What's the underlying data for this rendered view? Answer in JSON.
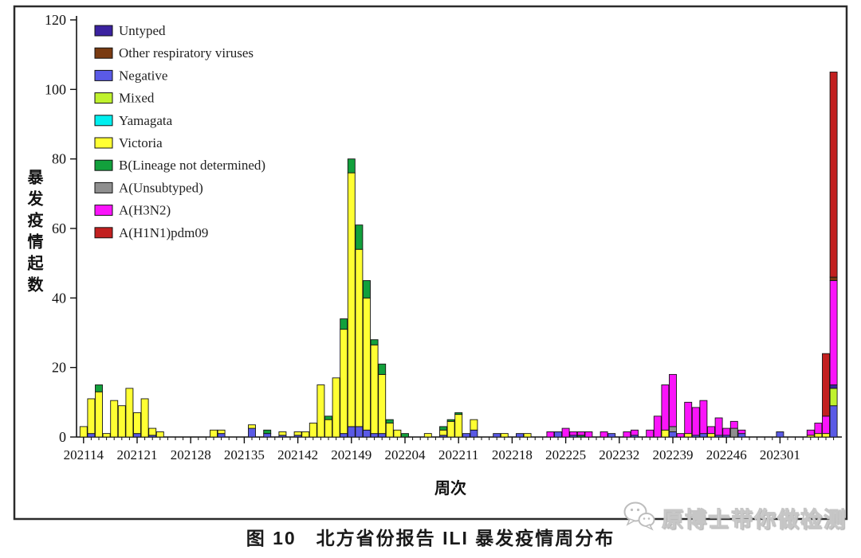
{
  "figure": {
    "caption": "图 10　北方省份报告 ILI 暴发疫情周分布",
    "watermark": "原博士带你做检测"
  },
  "chart_data": {
    "type": "bar",
    "stacked": true,
    "title": "",
    "xlabel": "周次",
    "ylabel": "暴发疫情起数",
    "ylim": [
      0,
      120
    ],
    "y_ticks": [
      0,
      20,
      40,
      60,
      80,
      100,
      120
    ],
    "x_ticks": [
      "202114",
      "202121",
      "202128",
      "202135",
      "202142",
      "202149",
      "202204",
      "202211",
      "202218",
      "202225",
      "202232",
      "202239",
      "202246",
      "202301"
    ],
    "legend_position": "top-left",
    "grid": false,
    "series": [
      {
        "key": "untyped",
        "label": "Untyped",
        "color": "#3B22A0"
      },
      {
        "key": "other",
        "label": "Other respiratory viruses",
        "color": "#7A3B12"
      },
      {
        "key": "negative",
        "label": "Negative",
        "color": "#5A5AE6"
      },
      {
        "key": "mixed",
        "label": "Mixed",
        "color": "#C0F22E"
      },
      {
        "key": "yamagata",
        "label": "Yamagata",
        "color": "#00EFEF"
      },
      {
        "key": "victoria",
        "label": "Victoria",
        "color": "#FFFF33"
      },
      {
        "key": "b_lineage",
        "label": "B(Lineage not determined)",
        "color": "#12A03C"
      },
      {
        "key": "unsubtyped",
        "label": "A(Unsubtyped)",
        "color": "#8F8F8F"
      },
      {
        "key": "h3n2",
        "label": "A(H3N2)",
        "color": "#FA14FA"
      },
      {
        "key": "h1n1pdm09",
        "label": "A(H1N1)pdm09",
        "color": "#C22020"
      }
    ],
    "stack_order": [
      "negative",
      "unsubtyped",
      "mixed",
      "untyped",
      "victoria",
      "b_lineage",
      "h3n2",
      "other",
      "h1n1pdm09"
    ],
    "bars": [
      {
        "week": "202114",
        "segments": {
          "victoria": 3
        }
      },
      {
        "week": "202115",
        "segments": {
          "negative": 1,
          "victoria": 10
        }
      },
      {
        "week": "202116",
        "segments": {
          "victoria": 13,
          "b_lineage": 2
        }
      },
      {
        "week": "202117",
        "segments": {
          "victoria": 1
        }
      },
      {
        "week": "202118",
        "segments": {
          "victoria": 10.5
        }
      },
      {
        "week": "202119",
        "segments": {
          "victoria": 9
        }
      },
      {
        "week": "202120",
        "segments": {
          "victoria": 14
        }
      },
      {
        "week": "202121",
        "segments": {
          "negative": 1,
          "victoria": 6
        }
      },
      {
        "week": "202122",
        "segments": {
          "victoria": 11
        }
      },
      {
        "week": "202123",
        "segments": {
          "negative": 0.5,
          "victoria": 2
        }
      },
      {
        "week": "202124",
        "segments": {
          "victoria": 1.5
        }
      },
      {
        "week": "202131",
        "segments": {
          "victoria": 2
        }
      },
      {
        "week": "202132",
        "segments": {
          "negative": 1,
          "victoria": 1
        }
      },
      {
        "week": "202136",
        "segments": {
          "negative": 2.5,
          "victoria": 1
        }
      },
      {
        "week": "202138",
        "segments": {
          "negative": 1,
          "b_lineage": 1
        }
      },
      {
        "week": "202140",
        "segments": {
          "negative": 0.5,
          "victoria": 1
        }
      },
      {
        "week": "202142",
        "segments": {
          "negative": 0.5,
          "victoria": 1
        }
      },
      {
        "week": "202143",
        "segments": {
          "victoria": 1.5
        }
      },
      {
        "week": "202144",
        "segments": {
          "victoria": 4
        }
      },
      {
        "week": "202145",
        "segments": {
          "victoria": 15
        }
      },
      {
        "week": "202146",
        "segments": {
          "victoria": 5,
          "b_lineage": 1
        }
      },
      {
        "week": "202147",
        "segments": {
          "victoria": 17
        }
      },
      {
        "week": "202148",
        "segments": {
          "negative": 1,
          "victoria": 30,
          "b_lineage": 3
        }
      },
      {
        "week": "202149",
        "segments": {
          "negative": 3,
          "victoria": 73,
          "b_lineage": 4
        }
      },
      {
        "week": "202150",
        "segments": {
          "negative": 3,
          "victoria": 51,
          "b_lineage": 7
        }
      },
      {
        "week": "202151",
        "segments": {
          "negative": 2,
          "victoria": 38,
          "b_lineage": 5
        }
      },
      {
        "week": "202152",
        "segments": {
          "negative": 1,
          "victoria": 25.5,
          "b_lineage": 1.5
        }
      },
      {
        "week": "202201",
        "segments": {
          "negative": 1,
          "victoria": 17,
          "b_lineage": 3
        }
      },
      {
        "week": "202202",
        "segments": {
          "victoria": 4,
          "b_lineage": 1
        }
      },
      {
        "week": "202203",
        "segments": {
          "victoria": 2
        }
      },
      {
        "week": "202204",
        "segments": {
          "b_lineage": 1
        }
      },
      {
        "week": "202207",
        "segments": {
          "victoria": 1
        }
      },
      {
        "week": "202209",
        "segments": {
          "negative": 0.5,
          "victoria": 1.5,
          "b_lineage": 1
        }
      },
      {
        "week": "202210",
        "segments": {
          "victoria": 4.5,
          "b_lineage": 0.5
        }
      },
      {
        "week": "202211",
        "segments": {
          "victoria": 6.5,
          "b_lineage": 0.5
        }
      },
      {
        "week": "202212",
        "segments": {
          "negative": 1
        }
      },
      {
        "week": "202213",
        "segments": {
          "negative": 2,
          "victoria": 3
        }
      },
      {
        "week": "202216",
        "segments": {
          "negative": 1
        }
      },
      {
        "week": "202217",
        "segments": {
          "victoria": 1
        }
      },
      {
        "week": "202219",
        "segments": {
          "negative": 1
        }
      },
      {
        "week": "202220",
        "segments": {
          "victoria": 1
        }
      },
      {
        "week": "202223",
        "segments": {
          "h3n2": 1.5
        }
      },
      {
        "week": "202224",
        "segments": {
          "negative": 1.5
        }
      },
      {
        "week": "202225",
        "segments": {
          "h3n2": 2.5
        }
      },
      {
        "week": "202226",
        "segments": {
          "negative": 0.5,
          "h3n2": 1
        }
      },
      {
        "week": "202227",
        "segments": {
          "b_lineage": 0.5,
          "h3n2": 1
        }
      },
      {
        "week": "202228",
        "segments": {
          "h3n2": 1.5
        }
      },
      {
        "week": "202230",
        "segments": {
          "h3n2": 1.5
        }
      },
      {
        "week": "202231",
        "segments": {
          "negative": 1
        }
      },
      {
        "week": "202233",
        "segments": {
          "h3n2": 1.5
        }
      },
      {
        "week": "202234",
        "segments": {
          "negative": 0.5,
          "h3n2": 1.5
        }
      },
      {
        "week": "202236",
        "segments": {
          "h3n2": 2
        }
      },
      {
        "week": "202237",
        "segments": {
          "h3n2": 6
        }
      },
      {
        "week": "202238",
        "segments": {
          "victoria": 2,
          "h3n2": 13
        }
      },
      {
        "week": "202239",
        "segments": {
          "negative": 1.5,
          "unsubtyped": 1.5,
          "h3n2": 15
        }
      },
      {
        "week": "202240",
        "segments": {
          "h3n2": 1
        }
      },
      {
        "week": "202241",
        "segments": {
          "victoria": 1,
          "h3n2": 9
        }
      },
      {
        "week": "202242",
        "segments": {
          "negative": 0.5,
          "h3n2": 8
        }
      },
      {
        "week": "202243",
        "segments": {
          "negative": 1,
          "h3n2": 9.5
        }
      },
      {
        "week": "202244",
        "segments": {
          "victoria": 1,
          "h3n2": 2
        }
      },
      {
        "week": "202245",
        "segments": {
          "negative": 0.5,
          "h3n2": 5
        }
      },
      {
        "week": "202246",
        "segments": {
          "negative": 0.5,
          "h3n2": 2
        }
      },
      {
        "week": "202247",
        "segments": {
          "unsubtyped": 2.5,
          "h3n2": 2
        }
      },
      {
        "week": "202248",
        "segments": {
          "negative": 1,
          "h3n2": 1
        }
      },
      {
        "week": "202301",
        "segments": {
          "negative": 1.5
        }
      },
      {
        "week": "202305",
        "segments": {
          "victoria": 0.5,
          "h3n2": 1.5
        }
      },
      {
        "week": "202306",
        "segments": {
          "victoria": 1,
          "h3n2": 3
        }
      },
      {
        "week": "202307",
        "segments": {
          "victoria": 1,
          "h3n2": 5,
          "h1n1pdm09": 18
        }
      },
      {
        "week": "202308",
        "segments": {
          "negative": 9,
          "mixed": 5,
          "untyped": 1,
          "h3n2": 30,
          "other": 1,
          "h1n1pdm09": 59
        }
      }
    ]
  }
}
